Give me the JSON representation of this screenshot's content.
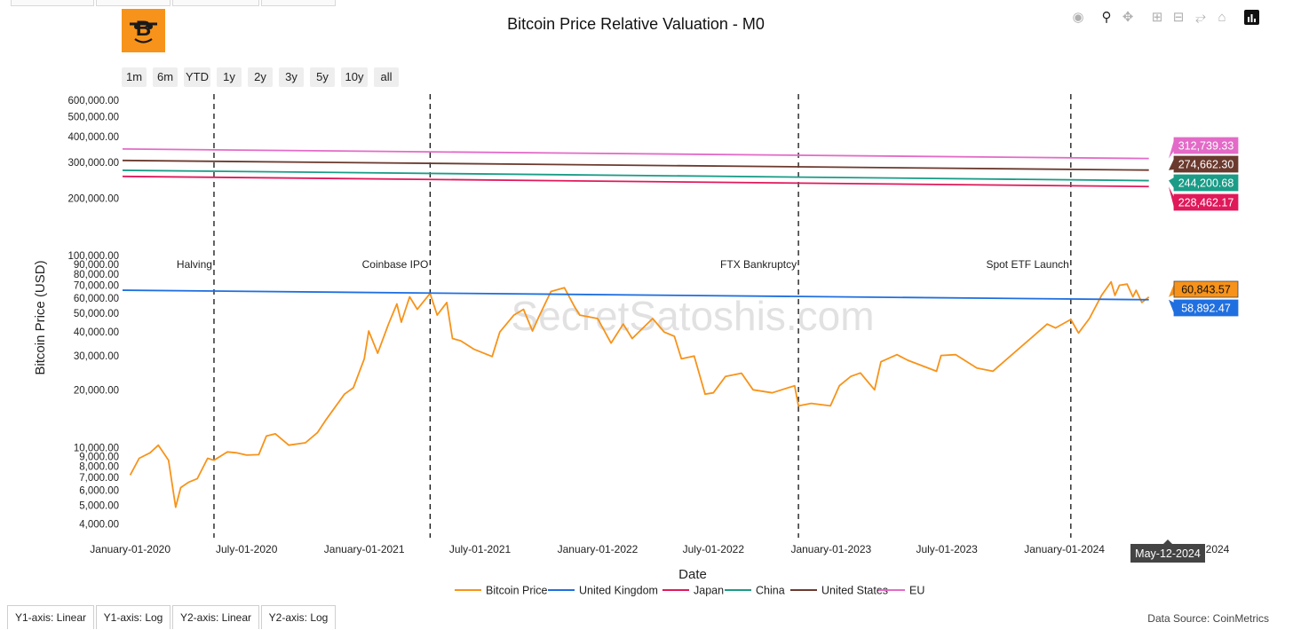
{
  "page": {
    "title": "Bitcoin Price Relative Valuation - M0",
    "data_source": "Data Source: CoinMetrics"
  },
  "range_selector": [
    "1m",
    "6m",
    "YTD",
    "1y",
    "2y",
    "3y",
    "5y",
    "10y",
    "all"
  ],
  "modebar_icons": [
    "camera-icon",
    "zoom-icon",
    "pan-icon",
    "zoom-in-icon",
    "zoom-out-icon",
    "autoscale-icon",
    "reset-axes-icon",
    "plotly-logo-icon"
  ],
  "axis_tabs": [
    "Y1-axis: Linear",
    "Y1-axis: Log",
    "Y2-axis: Linear",
    "Y2-axis: Log"
  ],
  "chart_data": {
    "type": "line",
    "title": "Bitcoin Price Relative Valuation - M0",
    "xlabel": "Date",
    "ylabel": "Bitcoin Price (USD)",
    "x_ticks": [
      "January-01-2020",
      "July-01-2020",
      "January-01-2021",
      "July-01-2021",
      "January-01-2022",
      "July-01-2022",
      "January-01-2023",
      "July-01-2023",
      "January-01-2024",
      "2024"
    ],
    "hover_date": "May-12-2024",
    "xlim": [
      "2019-12-20",
      "2024-06-12"
    ],
    "yaxis_upper": {
      "scale": "log",
      "tick_labels": [
        "600,000.00",
        "500,000.00",
        "400,000.00",
        "300,000.00",
        "200,000.00"
      ],
      "tick_values": [
        600000,
        500000,
        400000,
        300000,
        200000
      ],
      "range": [
        170000,
        650000
      ]
    },
    "yaxis_lower": {
      "scale": "log",
      "tick_labels": [
        "100,000.00",
        "90,000.00",
        "80,000.00",
        "70,000.00",
        "60,000.00",
        "50,000.00",
        "40,000.00",
        "30,000.00",
        "20,000.00",
        "10,000.00",
        "9,000.00",
        "8,000.00",
        "7,000.00",
        "6,000.00",
        "5,000.00",
        "4,000.00"
      ],
      "tick_values": [
        100000,
        90000,
        80000,
        70000,
        60000,
        50000,
        40000,
        30000,
        20000,
        10000,
        9000,
        8000,
        7000,
        6000,
        5000,
        4000
      ],
      "range": [
        3700,
        100000
      ]
    },
    "events": [
      {
        "label": "Halving",
        "date": "2020-05-11"
      },
      {
        "label": "Coinbase IPO",
        "date": "2021-04-14"
      },
      {
        "label": "FTX Bankruptcy",
        "date": "2022-11-11"
      },
      {
        "label": "Spot ETF Launch",
        "date": "2024-01-11"
      }
    ],
    "series": [
      {
        "name": "Bitcoin Price",
        "axis": "lower",
        "color": "#f7931a",
        "end_value": 60843.57,
        "end_label": "60,843.57",
        "points": [
          [
            "2020-01-01",
            7200
          ],
          [
            "2020-01-15",
            8800
          ],
          [
            "2020-02-01",
            9400
          ],
          [
            "2020-02-14",
            10300
          ],
          [
            "2020-03-01",
            8600
          ],
          [
            "2020-03-12",
            4900
          ],
          [
            "2020-03-20",
            6200
          ],
          [
            "2020-04-01",
            6600
          ],
          [
            "2020-04-15",
            6900
          ],
          [
            "2020-05-01",
            8800
          ],
          [
            "2020-05-11",
            8600
          ],
          [
            "2020-06-01",
            9500
          ],
          [
            "2020-06-15",
            9400
          ],
          [
            "2020-07-01",
            9150
          ],
          [
            "2020-07-20",
            9200
          ],
          [
            "2020-08-01",
            11500
          ],
          [
            "2020-08-15",
            11800
          ],
          [
            "2020-09-05",
            10300
          ],
          [
            "2020-10-01",
            10600
          ],
          [
            "2020-10-20",
            12000
          ],
          [
            "2020-11-01",
            13800
          ],
          [
            "2020-11-15",
            16000
          ],
          [
            "2020-12-01",
            19000
          ],
          [
            "2020-12-15",
            20500
          ],
          [
            "2021-01-01",
            29000
          ],
          [
            "2021-01-08",
            40500
          ],
          [
            "2021-01-22",
            31000
          ],
          [
            "2021-02-08",
            44000
          ],
          [
            "2021-02-21",
            56000
          ],
          [
            "2021-02-28",
            45000
          ],
          [
            "2021-03-13",
            61000
          ],
          [
            "2021-03-25",
            52500
          ],
          [
            "2021-04-14",
            63500
          ],
          [
            "2021-04-25",
            49000
          ],
          [
            "2021-05-10",
            57000
          ],
          [
            "2021-05-19",
            37000
          ],
          [
            "2021-06-01",
            36000
          ],
          [
            "2021-06-22",
            32500
          ],
          [
            "2021-07-20",
            29800
          ],
          [
            "2021-08-01",
            40000
          ],
          [
            "2021-08-23",
            49000
          ],
          [
            "2021-09-07",
            52500
          ],
          [
            "2021-09-21",
            40500
          ],
          [
            "2021-10-01",
            48000
          ],
          [
            "2021-10-20",
            65000
          ],
          [
            "2021-11-10",
            68000
          ],
          [
            "2021-11-26",
            54000
          ],
          [
            "2021-12-04",
            49000
          ],
          [
            "2022-01-01",
            47000
          ],
          [
            "2022-01-22",
            35000
          ],
          [
            "2022-02-10",
            44000
          ],
          [
            "2022-02-24",
            37000
          ],
          [
            "2022-03-28",
            47000
          ],
          [
            "2022-04-15",
            40000
          ],
          [
            "2022-05-01",
            38000
          ],
          [
            "2022-05-12",
            29000
          ],
          [
            "2022-06-01",
            30000
          ],
          [
            "2022-06-18",
            19000
          ],
          [
            "2022-07-01",
            19300
          ],
          [
            "2022-07-20",
            23500
          ],
          [
            "2022-08-14",
            24400
          ],
          [
            "2022-09-01",
            20000
          ],
          [
            "2022-10-01",
            19300
          ],
          [
            "2022-11-05",
            21000
          ],
          [
            "2022-11-11",
            16500
          ],
          [
            "2022-12-01",
            17000
          ],
          [
            "2022-12-31",
            16500
          ],
          [
            "2023-01-14",
            21000
          ],
          [
            "2023-02-01",
            23500
          ],
          [
            "2023-02-16",
            24500
          ],
          [
            "2023-03-10",
            20000
          ],
          [
            "2023-03-20",
            28000
          ],
          [
            "2023-04-14",
            30500
          ],
          [
            "2023-05-01",
            28500
          ],
          [
            "2023-06-15",
            25000
          ],
          [
            "2023-06-22",
            30200
          ],
          [
            "2023-07-15",
            30500
          ],
          [
            "2023-08-17",
            26000
          ],
          [
            "2023-09-11",
            25000
          ],
          [
            "2023-10-23",
            33000
          ],
          [
            "2023-11-09",
            37000
          ],
          [
            "2023-12-05",
            44000
          ],
          [
            "2023-12-18",
            42000
          ],
          [
            "2024-01-11",
            46500
          ],
          [
            "2024-01-23",
            39500
          ],
          [
            "2024-02-09",
            47000
          ],
          [
            "2024-02-28",
            62000
          ],
          [
            "2024-03-14",
            73000
          ],
          [
            "2024-03-20",
            62000
          ],
          [
            "2024-03-27",
            70000
          ],
          [
            "2024-04-08",
            71000
          ],
          [
            "2024-04-17",
            61000
          ],
          [
            "2024-04-22",
            66000
          ],
          [
            "2024-05-01",
            57000
          ],
          [
            "2024-05-12",
            60843.57
          ]
        ]
      },
      {
        "name": "United Kingdom",
        "axis": "lower",
        "color": "#1f6fe0",
        "start_value": 66000,
        "end_value": 58892.47,
        "end_label": "58,892.47"
      },
      {
        "name": "Japan",
        "axis": "upper",
        "color": "#e0195b",
        "start_value": 256000,
        "end_value": 228462.17,
        "end_label": "228,462.17"
      },
      {
        "name": "China",
        "axis": "upper",
        "color": "#1a9c87",
        "start_value": 274000,
        "end_value": 244200.68,
        "end_label": "244,200.68"
      },
      {
        "name": "United States",
        "axis": "upper",
        "color": "#6b3a2e",
        "start_value": 306000,
        "end_value": 274662.3,
        "end_label": "274,662.30"
      },
      {
        "name": "EU",
        "axis": "upper",
        "color": "#e36bc8",
        "start_value": 348000,
        "end_value": 312739.33,
        "end_label": "312,739.33"
      }
    ],
    "legend_position": "bottom-center",
    "grid": false,
    "watermark": "SecretSatoshis.com"
  }
}
